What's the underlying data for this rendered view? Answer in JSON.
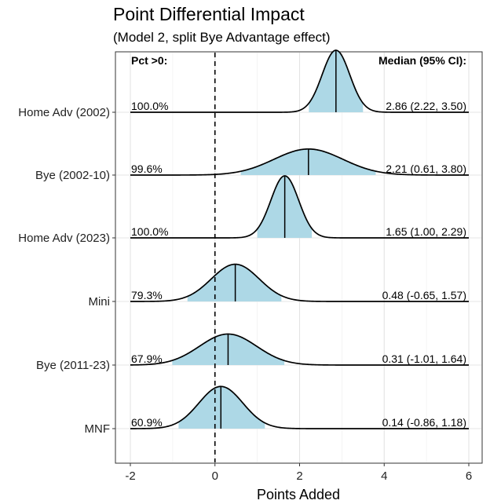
{
  "chart_data": {
    "type": "ridgeline",
    "title": "Point Differential Impact",
    "subtitle": "(Model 2, split Bye Advantage effect)",
    "xlabel": "Points Added",
    "ylabel": "",
    "xlim": [
      -2.2,
      6.2
    ],
    "x_ticks": [
      -2,
      0,
      2,
      4,
      6
    ],
    "x_tick_labels": [
      "-2",
      "0",
      "2",
      "4",
      "6"
    ],
    "grid": true,
    "reference_line": {
      "x": 0,
      "style": "dashed"
    },
    "fill_color": "#add8e6",
    "pct_header": "Pct >0:",
    "median_header": "Median (95% CI):",
    "series": [
      {
        "name": "Home Adv (2002)",
        "pct_gt_0": "100.0%",
        "median": 2.86,
        "ci_low": 2.22,
        "ci_high": 3.5,
        "median_label": "2.86 (2.22, 3.50)",
        "peak_height": 1.0
      },
      {
        "name": "Bye (2002-10)",
        "pct_gt_0": "99.6%",
        "median": 2.21,
        "ci_low": 0.61,
        "ci_high": 3.8,
        "median_label": "2.21 (0.61, 3.80)",
        "peak_height": 0.42
      },
      {
        "name": "Home Adv (2023)",
        "pct_gt_0": "100.0%",
        "median": 1.65,
        "ci_low": 1.0,
        "ci_high": 2.29,
        "median_label": "1.65 (1.00, 2.29)",
        "peak_height": 1.0
      },
      {
        "name": "Mini",
        "pct_gt_0": "79.3%",
        "median": 0.48,
        "ci_low": -0.65,
        "ci_high": 1.57,
        "median_label": "0.48 (-0.65, 1.57)",
        "peak_height": 0.6
      },
      {
        "name": "Bye (2011-23)",
        "pct_gt_0": "67.9%",
        "median": 0.31,
        "ci_low": -1.01,
        "ci_high": 1.64,
        "median_label": "0.31 (-1.01, 1.64)",
        "peak_height": 0.5
      },
      {
        "name": "MNF",
        "pct_gt_0": "60.9%",
        "median": 0.14,
        "ci_low": -0.86,
        "ci_high": 1.18,
        "median_label": "0.14 (-0.86, 1.18)",
        "peak_height": 0.68
      }
    ]
  }
}
